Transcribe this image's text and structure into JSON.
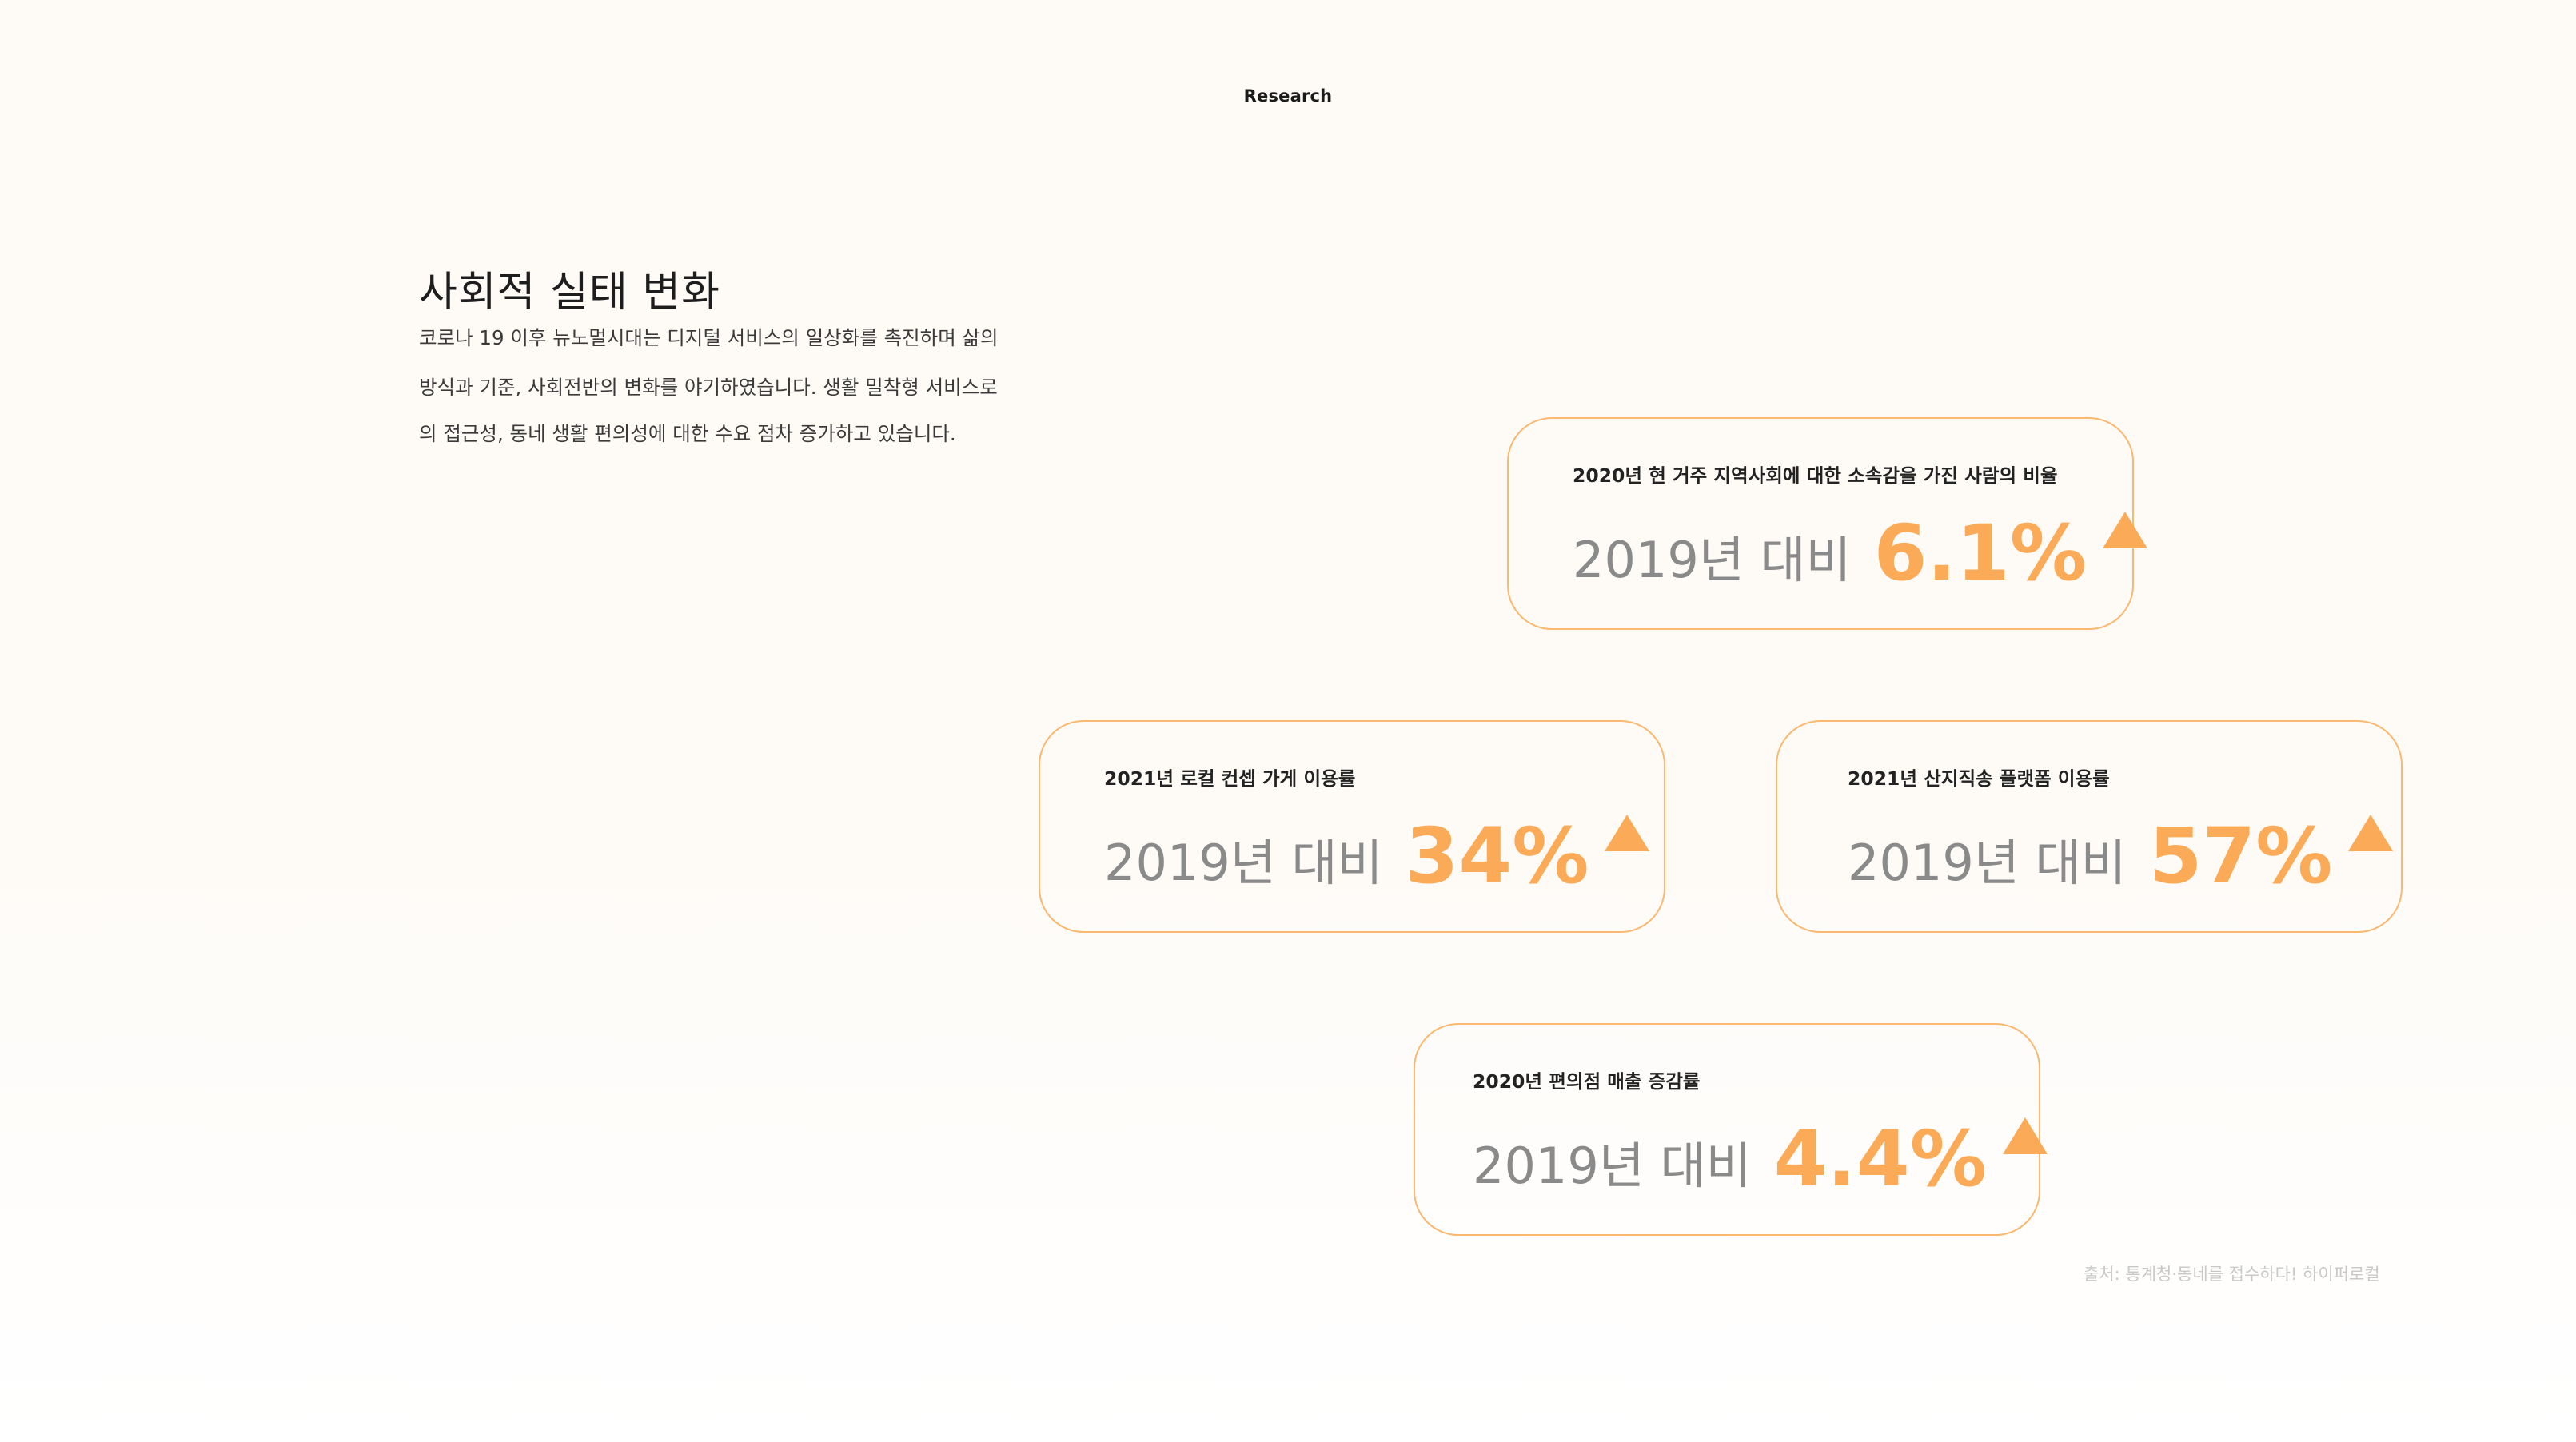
{
  "header": {
    "section_label": "Research"
  },
  "intro": {
    "title": "사회적 실태 변화",
    "description_lines": [
      "코로나 19 이후 뉴노멀시대는 디지털 서비스의 일상화를 촉진하며 삶의",
      "방식과 기준, 사회전반의 변화를 야기하였습니다. 생활 밀착형 서비스로",
      "의 접근성, 동네 생활 편의성에 대한 수요 점차 증가하고 있습니다."
    ]
  },
  "stats": [
    {
      "label": "2020년 현 거주 지역사회에 대한 소속감을 가진 사람의 비율",
      "compare": "2019년 대비",
      "value": "6.1%",
      "trend_icon": "triangle-up-icon"
    },
    {
      "label": "2021년 로컬 컨셉 가게 이용률",
      "compare": "2019년 대비",
      "value": "34%",
      "trend_icon": "triangle-up-icon"
    },
    {
      "label": "2021년 산지직송 플랫폼 이용률",
      "compare": "2019년 대비",
      "value": "57%",
      "trend_icon": "triangle-up-icon"
    },
    {
      "label": "2020년 편의점 매출 증감률",
      "compare": "2019년 대비",
      "value": "4.4%",
      "trend_icon": "triangle-up-icon"
    }
  ],
  "footer": {
    "source": "출처: 통계청·동네를 접수하다! 하이퍼로컬"
  },
  "colors": {
    "accent": "#fbab58",
    "card_border": "#fbb870",
    "muted_text": "#8a8a8a",
    "source_text": "#c8c8c8",
    "background": "#fefaf6"
  }
}
